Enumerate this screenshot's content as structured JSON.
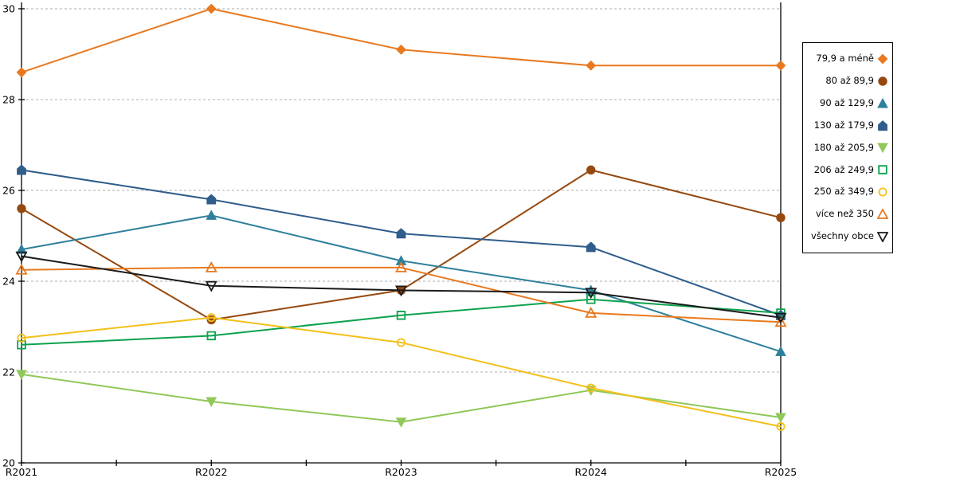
{
  "chart_data": {
    "type": "line",
    "title": "",
    "xlabel": "",
    "ylabel": "",
    "categories": [
      "R2021",
      "R2022",
      "R2023",
      "R2024",
      "R2025"
    ],
    "y_axis": {
      "min": 20,
      "max": 30,
      "tick_step": 2,
      "tick_labels": [
        "20",
        "22",
        "24",
        "26",
        "28",
        "30"
      ],
      "gridlines": "dashed"
    },
    "legend_position": "right",
    "series": [
      {
        "name": "79,9 a méně",
        "color": "#E8791F",
        "marker": "diamond",
        "fill": "filled",
        "values": [
          28.6,
          30.0,
          29.1,
          28.75,
          28.75
        ]
      },
      {
        "name": "80 až 89,9",
        "color": "#96490F",
        "marker": "circle",
        "fill": "filled",
        "values": [
          25.6,
          23.15,
          23.8,
          26.45,
          25.4
        ]
      },
      {
        "name": "90 až 129,9",
        "color": "#2E809B",
        "marker": "triangle-up",
        "fill": "filled",
        "values": [
          24.7,
          25.45,
          24.45,
          23.8,
          22.45
        ]
      },
      {
        "name": "130 až 179,9",
        "color": "#2F5D8C",
        "marker": "pentagon",
        "fill": "filled",
        "values": [
          26.45,
          25.8,
          25.05,
          24.75,
          23.25
        ]
      },
      {
        "name": "180 až 205,9",
        "color": "#90C85A",
        "marker": "triangle-down",
        "fill": "filled",
        "values": [
          21.95,
          21.35,
          20.9,
          21.6,
          21.0
        ]
      },
      {
        "name": "206 až 249,9",
        "color": "#0DA24E",
        "marker": "square",
        "fill": "open",
        "values": [
          22.6,
          22.8,
          23.25,
          23.6,
          23.3
        ]
      },
      {
        "name": "250 až 349,9",
        "color": "#F3C01A",
        "marker": "circle",
        "fill": "open",
        "values": [
          22.75,
          23.2,
          22.65,
          21.65,
          20.8
        ]
      },
      {
        "name": "více než 350",
        "color": "#E8791F",
        "marker": "triangle-up",
        "fill": "open",
        "values": [
          24.25,
          24.3,
          24.3,
          23.3,
          23.1
        ]
      },
      {
        "name": "všechny obce",
        "color": "#1A1A1A",
        "marker": "triangle-down",
        "fill": "open",
        "values": [
          24.55,
          23.9,
          23.8,
          23.75,
          23.2
        ]
      }
    ],
    "style": {
      "gridline_color": "#ADADAD",
      "axis_color": "#000000",
      "background": "#FFFFFF"
    }
  }
}
